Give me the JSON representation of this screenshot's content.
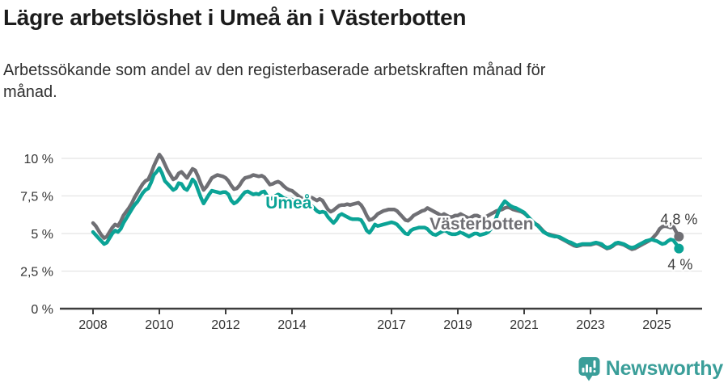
{
  "header": {
    "title": "Lägre arbetslöshet i Umeå än i Västerbotten",
    "subtitle_lines": [
      "Arbetssökande som andel av den registerbaserade arbetskraften månad för",
      "månad."
    ]
  },
  "chart_data": {
    "type": "line",
    "unit": "%",
    "x_start": {
      "year": 2008,
      "month": 1
    },
    "months_per_point": 1,
    "ylim": [
      0,
      10.8
    ],
    "grid": true,
    "y_ticks": [
      {
        "value": 0,
        "label": "0 %"
      },
      {
        "value": 2.5,
        "label": "2,5 %"
      },
      {
        "value": 5,
        "label": "5 %"
      },
      {
        "value": 7.5,
        "label": "7,5 %"
      },
      {
        "value": 10,
        "label": "10 %"
      }
    ],
    "x_ticks": [
      {
        "year": 2008,
        "label": "2008"
      },
      {
        "year": 2010,
        "label": "2010"
      },
      {
        "year": 2012,
        "label": "2012"
      },
      {
        "year": 2014,
        "label": "2014"
      },
      {
        "year": 2017,
        "label": "2017"
      },
      {
        "year": 2019,
        "label": "2019"
      },
      {
        "year": 2021,
        "label": "2021"
      },
      {
        "year": 2023,
        "label": "2023"
      },
      {
        "year": 2025,
        "label": "2025"
      }
    ],
    "series": [
      {
        "name": "Västerbotten",
        "color": "#6f6f74",
        "label_at": {
          "year": 2018.15,
          "value": 5.27
        },
        "end_label": "4,8 %",
        "end_value": 4.8,
        "values": [
          5.7,
          5.5,
          5.2,
          4.9,
          4.7,
          4.8,
          5.1,
          5.4,
          5.6,
          5.5,
          5.8,
          6.2,
          6.45,
          6.7,
          7.0,
          7.4,
          7.7,
          8.0,
          8.3,
          8.5,
          8.6,
          9.0,
          9.5,
          9.9,
          10.25,
          10.0,
          9.6,
          9.2,
          8.9,
          8.6,
          8.7,
          9.0,
          9.1,
          8.9,
          8.7,
          9.0,
          9.3,
          9.2,
          8.8,
          8.3,
          7.9,
          8.1,
          8.4,
          8.7,
          8.8,
          8.9,
          8.85,
          8.8,
          8.7,
          8.5,
          8.2,
          7.95,
          8.0,
          8.2,
          8.5,
          8.7,
          8.75,
          8.8,
          8.9,
          8.85,
          8.8,
          8.85,
          8.75,
          8.5,
          8.25,
          8.3,
          8.4,
          8.45,
          8.35,
          8.15,
          8.0,
          7.9,
          7.85,
          7.7,
          7.55,
          7.4,
          7.3,
          7.35,
          7.45,
          7.4,
          7.3,
          7.2,
          7.3,
          7.2,
          6.9,
          6.6,
          6.45,
          6.55,
          6.7,
          6.85,
          6.9,
          6.9,
          6.95,
          6.9,
          6.95,
          7.0,
          7.05,
          6.9,
          6.6,
          6.2,
          5.9,
          5.95,
          6.1,
          6.3,
          6.4,
          6.5,
          6.55,
          6.6,
          6.6,
          6.6,
          6.5,
          6.3,
          6.1,
          5.9,
          5.85,
          6.0,
          6.2,
          6.3,
          6.4,
          6.5,
          6.55,
          6.7,
          6.6,
          6.5,
          6.4,
          6.3,
          6.2,
          6.3,
          6.2,
          6.1,
          6.1,
          6.2,
          6.2,
          6.3,
          6.2,
          6.1,
          6.0,
          6.1,
          6.2,
          6.2,
          6.1,
          6.0,
          6.1,
          6.2,
          6.3,
          6.4,
          6.5,
          6.55,
          6.6,
          6.7,
          6.75,
          6.7,
          6.6,
          6.55,
          6.5,
          6.45,
          6.35,
          6.2,
          6.0,
          5.8,
          5.65,
          5.55,
          5.35,
          5.15,
          5.0,
          4.95,
          4.9,
          4.85,
          4.8,
          4.7,
          4.6,
          4.5,
          4.4,
          4.3,
          4.2,
          4.15,
          4.2,
          4.25,
          4.25,
          4.25,
          4.25,
          4.3,
          4.35,
          4.3,
          4.2,
          4.1,
          4.0,
          4.05,
          4.15,
          4.3,
          4.35,
          4.3,
          4.25,
          4.15,
          4.05,
          3.95,
          4.0,
          4.1,
          4.2,
          4.3,
          4.4,
          4.5,
          4.6,
          4.8,
          5.0,
          5.3,
          5.45,
          5.5,
          5.45,
          5.4,
          5.45,
          5.1,
          4.8
        ]
      },
      {
        "name": "Umeå",
        "color": "#0ba396",
        "label_at": {
          "year": 2013.2,
          "value": 6.67
        },
        "end_label": "4 %",
        "end_value": 4.0,
        "values": [
          5.1,
          4.9,
          4.7,
          4.5,
          4.3,
          4.4,
          4.7,
          5.0,
          5.2,
          5.1,
          5.3,
          5.7,
          6.0,
          6.3,
          6.6,
          6.9,
          7.1,
          7.4,
          7.7,
          7.9,
          8.0,
          8.4,
          8.9,
          9.1,
          9.35,
          9.0,
          8.5,
          8.3,
          8.1,
          7.9,
          8.0,
          8.35,
          8.3,
          8.0,
          7.9,
          8.2,
          8.6,
          8.4,
          7.9,
          7.4,
          7.0,
          7.3,
          7.6,
          7.85,
          7.8,
          7.75,
          7.7,
          7.75,
          7.75,
          7.6,
          7.2,
          7.0,
          7.1,
          7.3,
          7.55,
          7.75,
          7.8,
          7.7,
          7.6,
          7.65,
          7.6,
          7.75,
          7.8,
          7.5,
          7.3,
          7.35,
          7.5,
          7.6,
          7.5,
          7.35,
          7.3,
          7.3,
          7.25,
          7.1,
          7.05,
          6.9,
          6.8,
          6.85,
          6.9,
          6.85,
          6.7,
          6.5,
          6.4,
          6.45,
          6.4,
          6.1,
          5.9,
          5.7,
          5.9,
          6.2,
          6.3,
          6.2,
          6.1,
          6.0,
          5.95,
          5.95,
          5.95,
          5.9,
          5.6,
          5.2,
          5.05,
          5.3,
          5.6,
          5.5,
          5.55,
          5.6,
          5.65,
          5.7,
          5.75,
          5.7,
          5.6,
          5.4,
          5.2,
          5.0,
          4.95,
          5.2,
          5.3,
          5.35,
          5.4,
          5.4,
          5.4,
          5.3,
          5.1,
          4.95,
          4.9,
          5.0,
          5.1,
          5.2,
          5.15,
          5.0,
          4.95,
          4.95,
          5.0,
          5.1,
          5.0,
          4.9,
          4.8,
          4.9,
          5.0,
          5.0,
          4.9,
          4.95,
          5.0,
          5.1,
          5.3,
          5.6,
          6.1,
          6.6,
          6.9,
          7.15,
          7.0,
          6.85,
          6.75,
          6.7,
          6.6,
          6.5,
          6.4,
          6.2,
          6.0,
          5.8,
          5.65,
          5.5,
          5.3,
          5.1,
          5.0,
          4.9,
          4.85,
          4.8,
          4.8,
          4.75,
          4.65,
          4.55,
          4.45,
          4.4,
          4.3,
          4.2,
          4.25,
          4.3,
          4.3,
          4.3,
          4.3,
          4.35,
          4.4,
          4.35,
          4.3,
          4.15,
          4.05,
          4.1,
          4.2,
          4.35,
          4.4,
          4.35,
          4.3,
          4.2,
          4.1,
          4.05,
          4.1,
          4.2,
          4.3,
          4.4,
          4.5,
          4.55,
          4.6,
          4.55,
          4.5,
          4.4,
          4.3,
          4.35,
          4.5,
          4.6,
          4.55,
          4.3,
          4.0
        ]
      }
    ]
  },
  "footer": {
    "brand": "Newsworthy"
  }
}
